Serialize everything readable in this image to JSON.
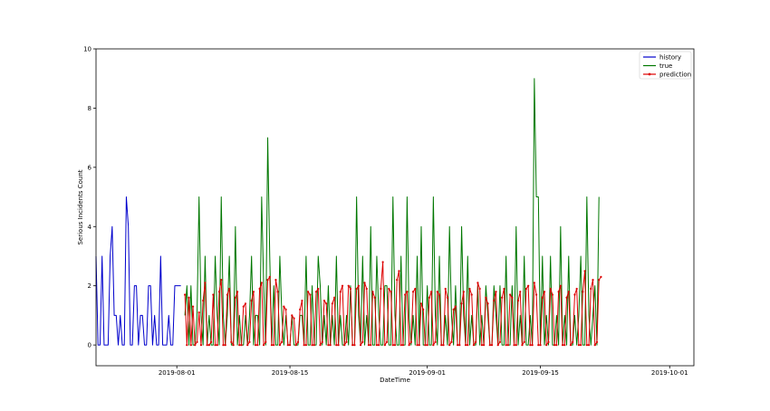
{
  "chart_data": {
    "type": "line",
    "title": "",
    "xlabel": "DateTime",
    "ylabel": "Serious Incidents Count",
    "x_range": [
      "2019-07-22",
      "2019-10-04"
    ],
    "ylim": [
      -0.7,
      10
    ],
    "y_ticks": [
      0,
      2,
      4,
      6,
      8,
      10
    ],
    "x_ticks": [
      {
        "date": "2019-08-01",
        "label": "2019-08-01"
      },
      {
        "date": "2019-08-15",
        "label": "2019-08-15"
      },
      {
        "date": "2019-09-01",
        "label": "2019-09-01"
      },
      {
        "date": "2019-09-15",
        "label": "2019-09-15"
      },
      {
        "date": "2019-10-01",
        "label": "2019-10-01"
      }
    ],
    "grid": false,
    "legend": "top-right",
    "series": [
      {
        "name": "history",
        "color": "#0000cc",
        "marker": false,
        "start": "2019-07-22",
        "step_days": 0.25,
        "values": [
          3,
          0,
          0,
          3,
          0,
          0,
          0,
          3,
          4,
          1,
          1,
          0,
          1,
          0,
          0,
          5,
          4,
          0,
          0,
          2,
          2,
          0,
          1,
          1,
          0,
          0,
          2,
          2,
          0,
          1,
          0,
          0,
          3,
          0,
          0,
          0,
          1,
          0,
          0,
          2,
          2,
          2,
          2
        ]
      },
      {
        "name": "true",
        "color": "#007700",
        "marker": false,
        "start": "2019-08-02",
        "step_days": 0.25,
        "values": [
          1,
          2,
          0,
          2,
          0,
          0,
          1,
          5,
          1,
          0,
          3,
          0,
          1,
          0,
          0,
          3,
          1,
          0,
          5,
          1,
          0,
          1,
          3,
          0,
          0,
          4,
          0,
          1,
          0,
          0,
          1,
          0,
          1,
          3,
          0,
          1,
          1,
          0,
          5,
          2,
          0,
          7,
          3,
          0,
          2,
          0,
          0,
          3,
          1,
          0,
          1,
          0,
          0,
          1,
          0,
          0,
          0,
          1,
          1,
          0,
          3,
          0,
          0,
          2,
          0,
          0,
          3,
          2,
          0,
          1,
          0,
          2,
          0,
          1,
          0,
          3,
          0,
          1,
          0,
          0,
          1,
          0,
          2,
          0,
          0,
          5,
          1,
          0,
          3,
          0,
          1,
          0,
          4,
          0,
          0,
          3,
          1,
          0,
          0,
          2,
          2,
          0,
          0,
          5,
          1,
          0,
          0,
          3,
          0,
          0,
          5,
          1,
          0,
          1,
          0,
          3,
          0,
          4,
          0,
          0,
          2,
          0,
          0,
          5,
          1,
          0,
          3,
          0,
          0,
          1,
          0,
          4,
          1,
          0,
          2,
          0,
          0,
          4,
          1,
          0,
          3,
          0,
          1,
          0,
          0,
          2,
          0,
          1,
          0,
          2,
          1,
          0,
          0,
          2,
          1,
          0,
          2,
          0,
          0,
          3,
          0,
          0,
          2,
          0,
          4,
          0,
          1,
          0,
          3,
          0,
          0,
          1,
          0,
          9,
          5,
          5,
          0,
          3,
          0,
          1,
          0,
          3,
          0,
          0,
          1,
          0,
          4,
          0,
          1,
          0,
          3,
          0,
          0,
          1,
          0,
          1,
          3,
          0,
          0,
          5,
          1,
          0,
          1,
          2,
          0,
          5
        ]
      },
      {
        "name": "prediction",
        "color": "#dd0000",
        "marker": true,
        "start": "2019-08-02",
        "step_days": 0.25,
        "values": [
          1.7,
          0,
          1.6,
          0,
          1.3,
          0,
          0.1,
          1.1,
          0,
          1.5,
          2.1,
          0,
          0,
          0.1,
          1.7,
          0,
          0,
          1.8,
          2.2,
          0,
          0,
          1.7,
          1.9,
          0.1,
          0,
          1.6,
          1.8,
          0,
          0,
          1.3,
          1.4,
          0,
          0.1,
          1.5,
          1.8,
          0,
          0,
          1.9,
          2.1,
          0,
          0.1,
          2.2,
          2.3,
          0,
          0,
          2.2,
          1.8,
          0,
          0.1,
          1.3,
          1.2,
          0,
          0,
          1.0,
          0.9,
          0,
          0.1,
          1.2,
          1.5,
          0,
          0,
          1.8,
          1.7,
          0,
          0,
          1.8,
          1.9,
          0,
          0.1,
          1.5,
          1.4,
          0,
          0,
          1.4,
          1.6,
          0,
          0,
          1.8,
          2.0,
          0,
          0.1,
          2.0,
          1.9,
          0,
          0,
          1.9,
          2.0,
          0,
          0.1,
          2.1,
          1.9,
          0,
          0,
          1.8,
          1.6,
          0,
          0,
          1.9,
          2.8,
          0,
          0.1,
          1.9,
          1.8,
          0,
          0,
          2.2,
          2.5,
          0,
          0,
          1.7,
          1.8,
          0,
          0.1,
          1.8,
          1.9,
          0,
          0,
          1.4,
          1.2,
          0,
          0,
          1.6,
          1.8,
          0,
          0.1,
          1.8,
          1.7,
          0,
          0,
          1.9,
          1.6,
          0,
          0.1,
          1.2,
          1.3,
          0,
          0,
          1.4,
          1.8,
          0,
          0,
          1.9,
          1.7,
          0,
          0.1,
          2.1,
          1.9,
          0,
          0,
          1.6,
          1.4,
          0,
          0,
          1.5,
          1.8,
          0,
          0.1,
          1.6,
          1.9,
          0,
          0,
          1.7,
          1.6,
          0,
          0,
          1.5,
          1.8,
          0,
          0.1,
          1.9,
          2.0,
          0,
          0,
          2.1,
          1.7,
          0,
          0,
          1.6,
          1.8,
          0,
          0.1,
          1.9,
          1.7,
          0,
          0,
          1.8,
          2.0,
          0,
          0,
          1.6,
          1.8,
          0,
          0.1,
          1.7,
          1.9,
          0,
          0,
          1.8,
          2.5,
          0,
          0,
          1.9,
          2.2,
          0,
          0.1,
          2.2,
          2.3
        ]
      }
    ]
  }
}
